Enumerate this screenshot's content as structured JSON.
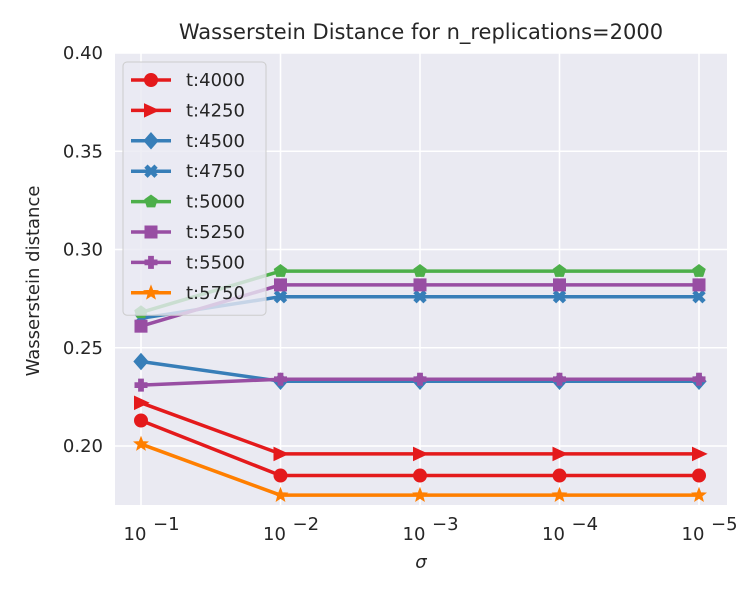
{
  "chart_data": {
    "type": "line",
    "title": "Wasserstein Distance for n_replications=2000",
    "xlabel": "σ",
    "ylabel": "Wasserstein distance",
    "x_scale": "log",
    "x_reversed": true,
    "x": [
      0.1,
      0.01,
      0.001,
      0.0001,
      1e-05
    ],
    "x_tick_labels": [
      {
        "base": "10",
        "exp": "−1"
      },
      {
        "base": "10",
        "exp": "−2"
      },
      {
        "base": "10",
        "exp": "−3"
      },
      {
        "base": "10",
        "exp": "−4"
      },
      {
        "base": "10",
        "exp": "−5"
      }
    ],
    "ylim": [
      0.17,
      0.4
    ],
    "y_ticks": [
      0.2,
      0.25,
      0.3,
      0.35,
      0.4
    ],
    "y_tick_labels": [
      "0.20",
      "0.25",
      "0.30",
      "0.35",
      "0.40"
    ],
    "grid": true,
    "legend_position": "upper-left",
    "series": [
      {
        "name": "t:4000",
        "color": "#e41a1c",
        "marker": "circle",
        "values": [
          0.213,
          0.185,
          0.185,
          0.185,
          0.185
        ]
      },
      {
        "name": "t:4250",
        "color": "#e41a1c",
        "marker": "triangle-right",
        "values": [
          0.222,
          0.196,
          0.196,
          0.196,
          0.196
        ]
      },
      {
        "name": "t:4500",
        "color": "#377eb8",
        "marker": "diamond",
        "values": [
          0.243,
          0.233,
          0.233,
          0.233,
          0.233
        ]
      },
      {
        "name": "t:4750",
        "color": "#377eb8",
        "marker": "x-filled",
        "values": [
          0.265,
          0.276,
          0.276,
          0.276,
          0.276
        ]
      },
      {
        "name": "t:5000",
        "color": "#4daf4a",
        "marker": "pentagon",
        "values": [
          0.268,
          0.289,
          0.289,
          0.289,
          0.289
        ]
      },
      {
        "name": "t:5250",
        "color": "#984ea3",
        "marker": "square",
        "values": [
          0.261,
          0.282,
          0.282,
          0.282,
          0.282
        ]
      },
      {
        "name": "t:5500",
        "color": "#984ea3",
        "marker": "plus-filled",
        "values": [
          0.231,
          0.234,
          0.234,
          0.234,
          0.234
        ]
      },
      {
        "name": "t:5750",
        "color": "#ff7f00",
        "marker": "star",
        "values": [
          0.201,
          0.175,
          0.175,
          0.175,
          0.175
        ]
      }
    ]
  }
}
